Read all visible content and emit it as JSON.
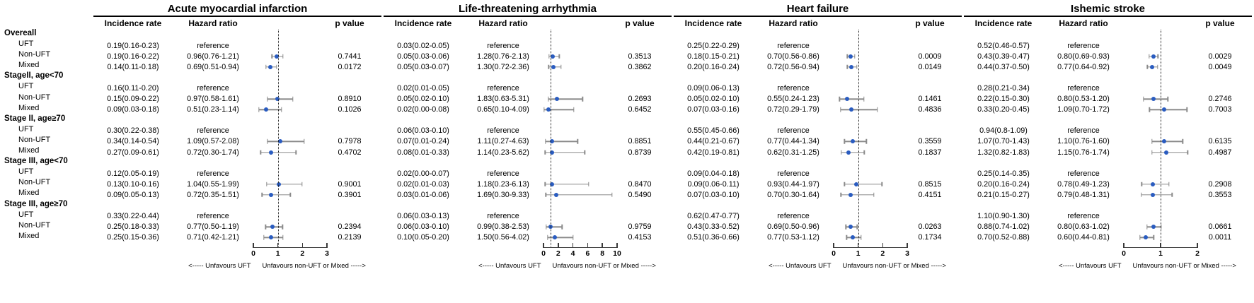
{
  "chart_data": {
    "type": "scatter",
    "subtype": "forest-plot",
    "marker_color": "#2a5cc0",
    "ci_color": "#8a8a8a",
    "reference_value": 1,
    "row_groups": [
      {
        "label": "Overeall",
        "rows": [
          "UFT",
          "Non-UFT",
          "Mixed"
        ]
      },
      {
        "label": "StageII, age<70",
        "rows": [
          "UFT",
          "Non-UFT",
          "Mixed"
        ]
      },
      {
        "label": "Stage II, age≥70",
        "rows": [
          "UFT",
          "Non-UFT",
          "Mixed"
        ]
      },
      {
        "label": "Stage III, age<70",
        "rows": [
          "UFT",
          "Non-UFT",
          "Mixed"
        ]
      },
      {
        "label": "Stage III, age≥70",
        "rows": [
          "UFT",
          "Non-UFT",
          "Mixed"
        ]
      }
    ],
    "panels": [
      {
        "title": "Acute myocardial infarction",
        "columns": {
          "incidence": "Incidence rate",
          "hazard": "Hazard ratio",
          "p": "p value"
        },
        "axis_ticks": [
          0,
          1,
          2,
          3
        ],
        "axis_max": 3,
        "footer_left": "<----- Unfavours UFT",
        "footer_right": "Unfavours non-UFT or Mixed ----->",
        "groups": [
          {
            "rows": [
              {
                "incidence": "0.19(0.16-0.23)",
                "hazard": "reference"
              },
              {
                "incidence": "0.19(0.16-0.22)",
                "hazard": "0.96(0.76-1.21)",
                "hr": 0.96,
                "lo": 0.76,
                "hi": 1.21,
                "p": "0.7441"
              },
              {
                "incidence": "0.14(0.11-0.18)",
                "hazard": "0.69(0.51-0.94)",
                "hr": 0.69,
                "lo": 0.51,
                "hi": 0.94,
                "p": "0.0172"
              }
            ]
          },
          {
            "rows": [
              {
                "incidence": "0.16(0.11-0.20)",
                "hazard": "reference"
              },
              {
                "incidence": "0.15(0.09-0.22)",
                "hazard": "0.97(0.58-1.61)",
                "hr": 0.97,
                "lo": 0.58,
                "hi": 1.61,
                "p": "0.8910"
              },
              {
                "incidence": "0.09(0.03-0.18)",
                "hazard": "0.51(0.23-1.14)",
                "hr": 0.51,
                "lo": 0.23,
                "hi": 1.14,
                "p": "0.1026"
              }
            ]
          },
          {
            "rows": [
              {
                "incidence": "0.30(0.22-0.38)",
                "hazard": "reference"
              },
              {
                "incidence": "0.34(0.14-0.54)",
                "hazard": "1.09(0.57-2.08)",
                "hr": 1.09,
                "lo": 0.57,
                "hi": 2.08,
                "p": "0.7978"
              },
              {
                "incidence": "0.27(0.09-0.61)",
                "hazard": "0.72(0.30-1.74)",
                "hr": 0.72,
                "lo": 0.3,
                "hi": 1.74,
                "p": "0.4702"
              }
            ]
          },
          {
            "rows": [
              {
                "incidence": "0.12(0.05-0.19)",
                "hazard": "reference"
              },
              {
                "incidence": "0.13(0.10-0.16)",
                "hazard": "1.04(0.55-1.99)",
                "hr": 1.04,
                "lo": 0.55,
                "hi": 1.99,
                "p": "0.9001"
              },
              {
                "incidence": "0.09(0.05-0.13)",
                "hazard": "0.72(0.35-1.51)",
                "hr": 0.72,
                "lo": 0.35,
                "hi": 1.51,
                "p": "0.3901"
              }
            ]
          },
          {
            "rows": [
              {
                "incidence": "0.33(0.22-0.44)",
                "hazard": "reference"
              },
              {
                "incidence": "0.25(0.18-0.33)",
                "hazard": "0.77(0.50-1.19)",
                "hr": 0.77,
                "lo": 0.5,
                "hi": 1.19,
                "p": "0.2394"
              },
              {
                "incidence": "0.25(0.15-0.36)",
                "hazard": "0.71(0.42-1.21)",
                "hr": 0.71,
                "lo": 0.42,
                "hi": 1.21,
                "p": "0.2139"
              }
            ]
          }
        ]
      },
      {
        "title": "Life-threatening arrhythmia",
        "columns": {
          "incidence": "Incidence rate",
          "hazard": "Hazard ratio",
          "p": "p value"
        },
        "axis_ticks": [
          0,
          2,
          4,
          6,
          8,
          10
        ],
        "axis_max": 10,
        "footer_left": "<----- Unfavours UFT",
        "footer_right": "Unfavours non-UFT or Mixed ----->",
        "groups": [
          {
            "rows": [
              {
                "incidence": "0.03(0.02-0.05)",
                "hazard": "reference"
              },
              {
                "incidence": "0.05(0.03-0.06)",
                "hazard": "1.28(0.76-2.13)",
                "hr": 1.28,
                "lo": 0.76,
                "hi": 2.13,
                "p": "0.3513"
              },
              {
                "incidence": "0.05(0.03-0.07)",
                "hazard": "1.30(0.72-2.36)",
                "hr": 1.3,
                "lo": 0.72,
                "hi": 2.36,
                "p": "0.3862"
              }
            ]
          },
          {
            "rows": [
              {
                "incidence": "0.02(0.01-0.05)",
                "hazard": "reference"
              },
              {
                "incidence": "0.05(0.02-0.10)",
                "hazard": "1.83(0.63-5.31)",
                "hr": 1.83,
                "lo": 0.63,
                "hi": 5.31,
                "p": "0.2693"
              },
              {
                "incidence": "0.02(0.00-0.08)",
                "hazard": "0.65(0.10-4.09)",
                "hr": 0.65,
                "lo": 0.1,
                "hi": 4.09,
                "p": "0.6452"
              }
            ]
          },
          {
            "rows": [
              {
                "incidence": "0.06(0.03-0.10)",
                "hazard": "reference"
              },
              {
                "incidence": "0.07(0.01-0.24)",
                "hazard": "1.11(0.27-4.63)",
                "hr": 1.11,
                "lo": 0.27,
                "hi": 4.63,
                "p": "0.8851"
              },
              {
                "incidence": "0.08(0.01-0.33)",
                "hazard": "1.14(0.23-5.62)",
                "hr": 1.14,
                "lo": 0.23,
                "hi": 5.62,
                "p": "0.8739"
              }
            ]
          },
          {
            "rows": [
              {
                "incidence": "0.02(0.00-0.07)",
                "hazard": "reference"
              },
              {
                "incidence": "0.02(0.01-0.03)",
                "hazard": "1.18(0.23-6.13)",
                "hr": 1.18,
                "lo": 0.23,
                "hi": 6.13,
                "p": "0.8470"
              },
              {
                "incidence": "0.03(0.01-0.06)",
                "hazard": "1.69(0.30-9.33)",
                "hr": 1.69,
                "lo": 0.3,
                "hi": 9.33,
                "p": "0.5490"
              }
            ]
          },
          {
            "rows": [
              {
                "incidence": "0.06(0.03-0.13)",
                "hazard": "reference"
              },
              {
                "incidence": "0.06(0.03-0.10)",
                "hazard": "0.99(0.38-2.53)",
                "hr": 0.99,
                "lo": 0.38,
                "hi": 2.53,
                "p": "0.9759"
              },
              {
                "incidence": "0.10(0.05-0.20)",
                "hazard": "1.50(0.56-4.02)",
                "hr": 1.5,
                "lo": 0.56,
                "hi": 4.02,
                "p": "0.4153"
              }
            ]
          }
        ]
      },
      {
        "title": "Heart failure",
        "columns": {
          "incidence": "Incidence rate",
          "hazard": "Hazard ratio",
          "p": "p value"
        },
        "axis_ticks": [
          0,
          1,
          2,
          3
        ],
        "axis_max": 3,
        "footer_left": "<----- Unfavours UFT",
        "footer_right": "Unfavours non-UFT or Mixed ----->",
        "groups": [
          {
            "rows": [
              {
                "incidence": "0.25(0.22-0.29)",
                "hazard": "reference"
              },
              {
                "incidence": "0.18(0.15-0.21)",
                "hazard": "0.70(0.56-0.86)",
                "hr": 0.7,
                "lo": 0.56,
                "hi": 0.86,
                "p": "0.0009"
              },
              {
                "incidence": "0.20(0.16-0.24)",
                "hazard": "0.72(0.56-0.94)",
                "hr": 0.72,
                "lo": 0.56,
                "hi": 0.94,
                "p": "0.0149"
              }
            ]
          },
          {
            "rows": [
              {
                "incidence": "0.09(0.06-0.13)",
                "hazard": "reference"
              },
              {
                "incidence": "0.05(0.02-0.10)",
                "hazard": "0.55(0.24-1.23)",
                "hr": 0.55,
                "lo": 0.24,
                "hi": 1.23,
                "p": "0.1461"
              },
              {
                "incidence": "0.07(0.03-0.16)",
                "hazard": "0.72(0.29-1.79)",
                "hr": 0.72,
                "lo": 0.29,
                "hi": 1.79,
                "p": "0.4836"
              }
            ]
          },
          {
            "rows": [
              {
                "incidence": "0.55(0.45-0.66)",
                "hazard": "reference"
              },
              {
                "incidence": "0.44(0.21-0.67)",
                "hazard": "0.77(0.44-1.34)",
                "hr": 0.77,
                "lo": 0.44,
                "hi": 1.34,
                "p": "0.3559"
              },
              {
                "incidence": "0.42(0.19-0.81)",
                "hazard": "0.62(0.31-1.25)",
                "hr": 0.62,
                "lo": 0.31,
                "hi": 1.25,
                "p": "0.1837"
              }
            ]
          },
          {
            "rows": [
              {
                "incidence": "0.09(0.04-0.18)",
                "hazard": "reference"
              },
              {
                "incidence": "0.09(0.06-0.11)",
                "hazard": "0.93(0.44-1.97)",
                "hr": 0.93,
                "lo": 0.44,
                "hi": 1.97,
                "p": "0.8515"
              },
              {
                "incidence": "0.07(0.03-0.10)",
                "hazard": "0.70(0.30-1.64)",
                "hr": 0.7,
                "lo": 0.3,
                "hi": 1.64,
                "p": "0.4151"
              }
            ]
          },
          {
            "rows": [
              {
                "incidence": "0.62(0.47-0.77)",
                "hazard": "reference"
              },
              {
                "incidence": "0.43(0.33-0.52)",
                "hazard": "0.69(0.50-0.96)",
                "hr": 0.69,
                "lo": 0.5,
                "hi": 0.96,
                "p": "0.0263"
              },
              {
                "incidence": "0.51(0.36-0.66)",
                "hazard": "0.77(0.53-1.12)",
                "hr": 0.77,
                "lo": 0.53,
                "hi": 1.12,
                "p": "0.1734"
              }
            ]
          }
        ]
      },
      {
        "title": "Ishemic stroke",
        "columns": {
          "incidence": "Incidence rate",
          "hazard": "Hazard ratio",
          "p": "p value"
        },
        "axis_ticks": [
          0,
          1,
          2
        ],
        "axis_max": 2,
        "footer_left": "<----- Unfavours UFT",
        "footer_right": "Unfavours non-UFT or Mixed ----->",
        "groups": [
          {
            "rows": [
              {
                "incidence": "0.52(0.46-0.57)",
                "hazard": "reference"
              },
              {
                "incidence": "0.43(0.39-0.47)",
                "hazard": "0.80(0.69-0.93)",
                "hr": 0.8,
                "lo": 0.69,
                "hi": 0.93,
                "p": "0.0029"
              },
              {
                "incidence": "0.44(0.37-0.50)",
                "hazard": "0.77(0.64-0.92)",
                "hr": 0.77,
                "lo": 0.64,
                "hi": 0.92,
                "p": "0.0049"
              }
            ]
          },
          {
            "rows": [
              {
                "incidence": "0.28(0.21-0.34)",
                "hazard": "reference"
              },
              {
                "incidence": "0.22(0.15-0.30)",
                "hazard": "0.80(0.53-1.20)",
                "hr": 0.8,
                "lo": 0.53,
                "hi": 1.2,
                "p": "0.2746"
              },
              {
                "incidence": "0.33(0.20-0.45)",
                "hazard": "1.09(0.70-1.72)",
                "hr": 1.09,
                "lo": 0.7,
                "hi": 1.72,
                "p": "0.7003"
              }
            ]
          },
          {
            "rows": [
              {
                "incidence": "0.94(0.8-1.09)",
                "hazard": "reference"
              },
              {
                "incidence": "1.07(0.70-1.43)",
                "hazard": "1.10(0.76-1.60)",
                "hr": 1.1,
                "lo": 0.76,
                "hi": 1.6,
                "p": "0.6135"
              },
              {
                "incidence": "1.32(0.82-1.83)",
                "hazard": "1.15(0.76-1.74)",
                "hr": 1.15,
                "lo": 0.76,
                "hi": 1.74,
                "p": "0.4987"
              }
            ]
          },
          {
            "rows": [
              {
                "incidence": "0.25(0.14-0.35)",
                "hazard": "reference"
              },
              {
                "incidence": "0.20(0.16-0.24)",
                "hazard": "0.78(0.49-1.23)",
                "hr": 0.78,
                "lo": 0.49,
                "hi": 1.23,
                "p": "0.2908"
              },
              {
                "incidence": "0.21(0.15-0.27)",
                "hazard": "0.79(0.48-1.31)",
                "hr": 0.79,
                "lo": 0.48,
                "hi": 1.31,
                "p": "0.3553"
              }
            ]
          },
          {
            "rows": [
              {
                "incidence": "1.10(0.90-1.30)",
                "hazard": "reference"
              },
              {
                "incidence": "0.88(0.74-1.02)",
                "hazard": "0.80(0.63-1.02)",
                "hr": 0.8,
                "lo": 0.63,
                "hi": 1.02,
                "p": "0.0661"
              },
              {
                "incidence": "0.70(0.52-0.88)",
                "hazard": "0.60(0.44-0.81)",
                "hr": 0.6,
                "lo": 0.44,
                "hi": 0.81,
                "p": "0.0011"
              }
            ]
          }
        ]
      }
    ]
  }
}
